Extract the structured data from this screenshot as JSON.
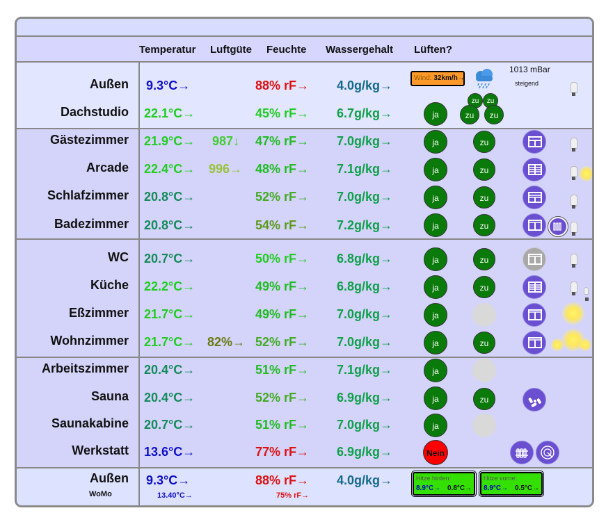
{
  "header": {
    "temperatur": "Temperatur",
    "luftguete": "Luftgüte",
    "feuchte": "Feuchte",
    "wassergehalt": "Wassergehalt",
    "lueften": "Lüften?"
  },
  "weather": {
    "pressure": "1013 mBar",
    "trend": "steigend",
    "wind_label": "Wind:",
    "wind_value": "32km/h",
    "wind_arrow": "→",
    "icon": "rain-cloud-icon"
  },
  "labels": {
    "ja": "ja",
    "zu": "zu",
    "nein": "Nein"
  },
  "rooms": [
    {
      "name": "Außen",
      "temp": "9.3°C→",
      "temp_color": "#1010c8",
      "air": "",
      "hum": "88% rF→",
      "hum_color": "#dd1111",
      "water": "4.0g/kg→",
      "water_color": "#156a8a"
    },
    {
      "name": "Dachstudio",
      "temp": "22.1°C→",
      "temp_color": "#22cc22",
      "air": "",
      "hum": "45% rF→",
      "hum_color": "#22cc22",
      "water": "6.7g/kg→",
      "water_color": "#11a04a"
    },
    {
      "name": "Gästezimmer",
      "temp": "21.9°C→",
      "temp_color": "#22cc22",
      "air": "987↓",
      "air_color": "#44cc33",
      "hum": "47% rF→",
      "hum_color": "#22bb22",
      "water": "7.0g/kg→",
      "water_color": "#11a04a"
    },
    {
      "name": "Arcade",
      "temp": "22.4°C→",
      "temp_color": "#22cc22",
      "air": "996→",
      "air_color": "#99c23a",
      "hum": "48% rF→",
      "hum_color": "#22bb22",
      "water": "7.1g/kg→",
      "water_color": "#11a04a"
    },
    {
      "name": "Schlafzimmer",
      "temp": "20.8°C→",
      "temp_color": "#168a5a",
      "air": "",
      "hum": "52% rF→",
      "hum_color": "#44aa22",
      "water": "7.0g/kg→",
      "water_color": "#11a04a"
    },
    {
      "name": "Badezimmer",
      "temp": "20.8°C→",
      "temp_color": "#168a5a",
      "air": "",
      "hum": "54% rF→",
      "hum_color": "#5a9a1a",
      "water": "7.2g/kg→",
      "water_color": "#11a04a"
    },
    {
      "name": "WC",
      "temp": "20.7°C→",
      "temp_color": "#168a5a",
      "air": "",
      "hum": "50% rF→",
      "hum_color": "#22cc22",
      "water": "6.8g/kg→",
      "water_color": "#11a04a"
    },
    {
      "name": "Küche",
      "temp": "22.2°C→",
      "temp_color": "#22cc22",
      "air": "",
      "hum": "49% rF→",
      "hum_color": "#22bb22",
      "water": "6.8g/kg→",
      "water_color": "#11a04a"
    },
    {
      "name": "Eßzimmer",
      "temp": "21.7°C→",
      "temp_color": "#22cc22",
      "air": "",
      "hum": "49% rF→",
      "hum_color": "#22bb22",
      "water": "7.0g/kg→",
      "water_color": "#11a04a"
    },
    {
      "name": "Wohnzimmer",
      "temp": "21.7°C→",
      "temp_color": "#22cc22",
      "air": "82%→",
      "air_color": "#6a7a10",
      "hum": "52% rF→",
      "hum_color": "#44aa22",
      "water": "7.0g/kg→",
      "water_color": "#11a04a"
    },
    {
      "name": "Arbeitszimmer",
      "temp": "20.4°C→",
      "temp_color": "#168a5a",
      "air": "",
      "hum": "51% rF→",
      "hum_color": "#22bb22",
      "water": "7.1g/kg→",
      "water_color": "#11a04a"
    },
    {
      "name": "Sauna",
      "temp": "20.4°C→",
      "temp_color": "#168a5a",
      "air": "",
      "hum": "52% rF→",
      "hum_color": "#44aa22",
      "water": "6.9g/kg→",
      "water_color": "#11a04a"
    },
    {
      "name": "Saunakabine",
      "temp": "20.7°C→",
      "temp_color": "#168a5a",
      "air": "",
      "hum": "51% rF→",
      "hum_color": "#22bb22",
      "water": "7.0g/kg→",
      "water_color": "#11a04a"
    },
    {
      "name": "Werkstatt",
      "temp": "13.6°C→",
      "temp_color": "#1010c8",
      "air": "",
      "hum": "77% rF→",
      "hum_color": "#dd1111",
      "water": "6.9g/kg→",
      "water_color": "#11a04a"
    }
  ],
  "footer": {
    "name": "Außen",
    "sub": "WoMo",
    "temp": "9.3°C→",
    "temp_color": "#1010c8",
    "temp_small": "13.40°C→",
    "hum": "88% rF→",
    "hum_color": "#dd1111",
    "hum_small": "75% rF→",
    "water": "4.0g/kg→",
    "water_color": "#156a8a",
    "box1": {
      "title": "Hitze hinten:",
      "a": "8.9°C→",
      "b": "0.8°C→"
    },
    "box2": {
      "title": "Hitze vorne:",
      "a": "8.9°C→",
      "b": "0.5°C→"
    }
  },
  "colors": {
    "ja_green": "#0a7a0a",
    "window_purple": "#6b4fd1",
    "nein_red": "#ff0000",
    "heat_box": "#34e000",
    "wind_box": "#ff9a2a"
  }
}
